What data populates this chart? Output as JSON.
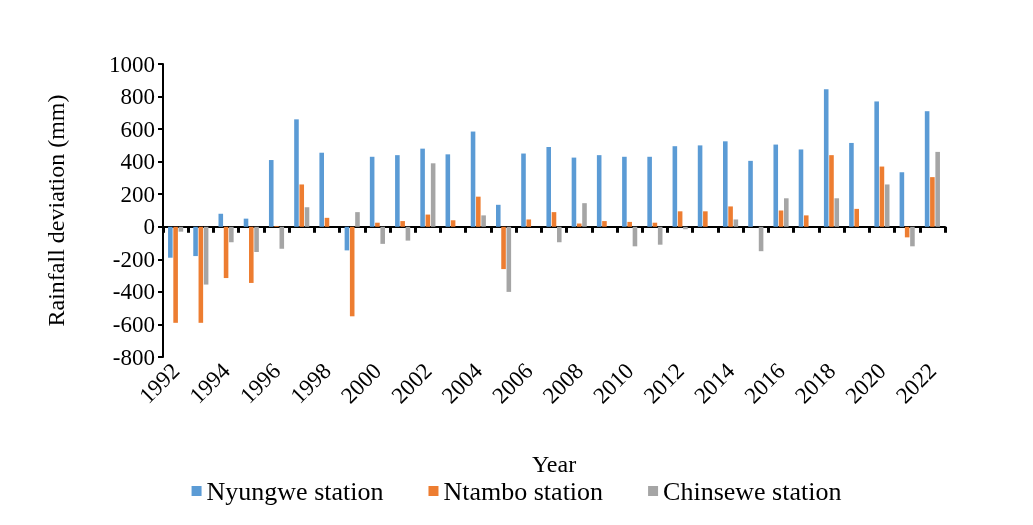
{
  "chart_data": {
    "type": "bar",
    "xlabel": "Year",
    "ylabel": "Rainfall deviation (mm)",
    "categories": [
      "1992",
      null,
      "1994",
      null,
      "1996",
      null,
      "1998",
      null,
      "2000",
      null,
      "2002",
      null,
      "2004",
      null,
      "2006",
      null,
      "2008",
      null,
      "2010",
      null,
      "2012",
      null,
      "2014",
      null,
      "2016",
      null,
      "2018",
      null,
      "2020",
      null,
      "2022"
    ],
    "series": [
      {
        "name": "Nyungwe station",
        "color": "#5b9bd5",
        "values": [
          -190,
          -180,
          80,
          50,
          410,
          660,
          455,
          -145,
          430,
          440,
          480,
          445,
          585,
          135,
          450,
          490,
          425,
          440,
          430,
          430,
          495,
          500,
          525,
          405,
          505,
          475,
          845,
          515,
          770,
          335,
          710
        ]
      },
      {
        "name": "Ntambo station",
        "color": "#ed7d31",
        "values": [
          -590,
          -590,
          -315,
          -345,
          5,
          260,
          55,
          -550,
          25,
          35,
          75,
          40,
          185,
          -260,
          45,
          90,
          20,
          35,
          30,
          25,
          95,
          95,
          125,
          0,
          100,
          70,
          440,
          110,
          370,
          -65,
          305
        ]
      },
      {
        "name": "Chinsewe station",
        "color": "#a5a5a5",
        "values": [
          -30,
          -355,
          -95,
          -155,
          -135,
          120,
          0,
          90,
          -105,
          -85,
          390,
          0,
          70,
          -400,
          0,
          -95,
          145,
          null,
          -120,
          -110,
          -15,
          null,
          45,
          -150,
          175,
          0,
          175,
          null,
          260,
          -120,
          460
        ]
      }
    ],
    "ylim": [
      -800,
      1000
    ],
    "yticks": [
      -800,
      -600,
      -400,
      -200,
      0,
      200,
      400,
      600,
      800,
      1000
    ],
    "legend": "bottom"
  }
}
